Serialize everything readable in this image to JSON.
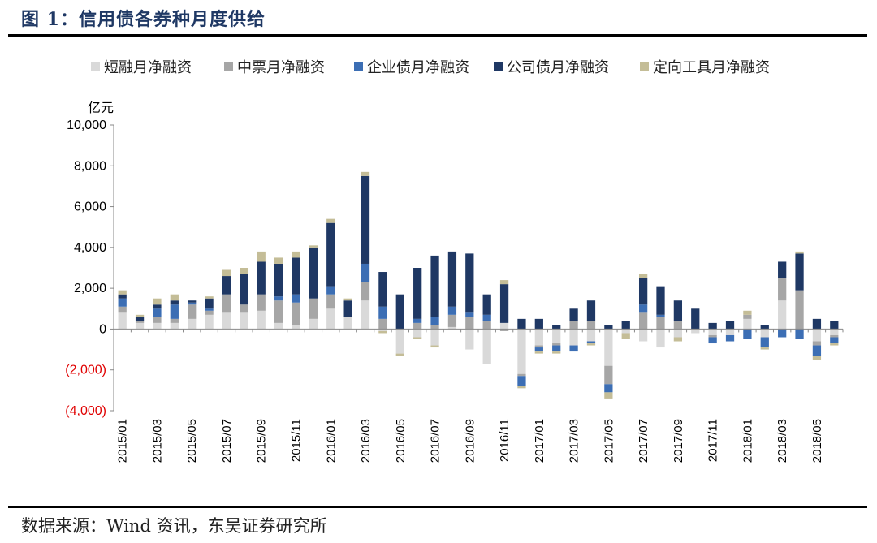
{
  "figure_title": "图 1：信用债各券种月度供给",
  "source_note": "数据来源：Wind 资讯，东吴证券研究所",
  "chart_data": {
    "type": "bar",
    "stacked": true,
    "unit_label": "亿元",
    "ylim": [
      -4000,
      10000
    ],
    "yticks": [
      10000,
      8000,
      6000,
      4000,
      2000,
      0,
      -2000,
      -4000
    ],
    "ytick_labels": [
      "10,000",
      "8,000",
      "6,000",
      "4,000",
      "2,000",
      "0",
      "(2,000)",
      "(4,000)"
    ],
    "legend_position": "top",
    "categories": [
      "2015/01",
      "2015/02",
      "2015/03",
      "2015/04",
      "2015/05",
      "2015/06",
      "2015/07",
      "2015/08",
      "2015/09",
      "2015/10",
      "2015/11",
      "2015/12",
      "2016/01",
      "2016/02",
      "2016/03",
      "2016/04",
      "2016/05",
      "2016/06",
      "2016/07",
      "2016/08",
      "2016/09",
      "2016/10",
      "2016/11",
      "2016/12",
      "2017/01",
      "2017/02",
      "2017/03",
      "2017/04",
      "2017/05",
      "2017/06",
      "2017/07",
      "2017/08",
      "2017/09",
      "2017/10",
      "2017/11",
      "2017/12",
      "2018/01",
      "2018/02",
      "2018/03",
      "2018/04",
      "2018/05",
      "2018/06"
    ],
    "xtick_labels": [
      "2015/01",
      "2015/03",
      "2015/05",
      "2015/07",
      "2015/09",
      "2015/11",
      "2016/01",
      "2016/03",
      "2016/05",
      "2016/07",
      "2016/09",
      "2016/11",
      "2017/01",
      "2017/03",
      "2017/05",
      "2017/07",
      "2017/09",
      "2017/11",
      "2018/01",
      "2018/03",
      "2018/05"
    ],
    "series": [
      {
        "name": "短融月净融资",
        "color": "#d9d9d9",
        "values": [
          800,
          300,
          300,
          300,
          500,
          700,
          800,
          800,
          900,
          300,
          200,
          500,
          1000,
          600,
          1400,
          -100,
          -1200,
          -400,
          -800,
          100,
          -1000,
          -1700,
          300,
          -2200,
          -800,
          -700,
          -800,
          -600,
          -1800,
          -200,
          -600,
          -900,
          -400,
          -200,
          -300,
          -300,
          500,
          -400,
          1400,
          0,
          -600,
          -300
        ]
      },
      {
        "name": "中票月净融资",
        "color": "#a6a6a6",
        "values": [
          300,
          100,
          300,
          200,
          700,
          200,
          900,
          400,
          800,
          1100,
          1100,
          1000,
          700,
          0,
          900,
          500,
          0,
          300,
          200,
          600,
          600,
          400,
          -100,
          -100,
          -100,
          -100,
          400,
          400,
          -900,
          0,
          800,
          600,
          400,
          0,
          -100,
          0,
          200,
          0,
          1100,
          1900,
          -200,
          -100
        ]
      },
      {
        "name": "企业债月净融资",
        "color": "#3c6eb4",
        "values": [
          400,
          0,
          400,
          700,
          100,
          100,
          0,
          0,
          0,
          200,
          400,
          0,
          400,
          0,
          900,
          600,
          0,
          200,
          400,
          400,
          200,
          300,
          0,
          -500,
          -200,
          -300,
          -300,
          -100,
          -400,
          0,
          400,
          100,
          0,
          0,
          -300,
          -300,
          -500,
          -500,
          -400,
          -500,
          -500,
          -300
        ]
      },
      {
        "name": "公司债月净融资",
        "color": "#1f3864",
        "values": [
          200,
          200,
          200,
          200,
          100,
          500,
          900,
          1500,
          1600,
          1600,
          1800,
          2500,
          3100,
          800,
          4300,
          1700,
          1700,
          2500,
          3000,
          2700,
          2900,
          1000,
          1900,
          500,
          500,
          200,
          600,
          1000,
          200,
          400,
          1300,
          1400,
          1000,
          1000,
          300,
          400,
          0,
          200,
          800,
          1800,
          500,
          400
        ]
      },
      {
        "name": "定向工具月净融资",
        "color": "#c4bd97",
        "values": [
          200,
          100,
          300,
          300,
          0,
          100,
          300,
          300,
          500,
          300,
          300,
          100,
          200,
          100,
          200,
          -100,
          -100,
          -100,
          -100,
          0,
          0,
          0,
          200,
          -100,
          -100,
          -100,
          0,
          -100,
          -300,
          -300,
          200,
          0,
          -200,
          0,
          0,
          0,
          200,
          -100,
          0,
          100,
          -200,
          -100
        ]
      }
    ]
  }
}
